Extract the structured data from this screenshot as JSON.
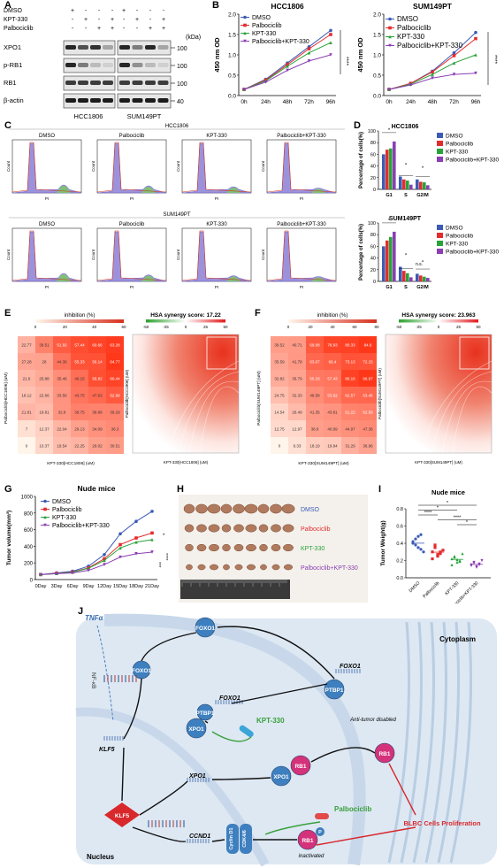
{
  "panels": {
    "A": "A",
    "B": "B",
    "C": "C",
    "D": "D",
    "E": "E",
    "F": "F",
    "G": "G",
    "H": "H",
    "I": "I",
    "J": "J"
  },
  "blot": {
    "conditions": [
      {
        "name": "DMSO",
        "marks": [
          "+",
          "-",
          "-",
          "-",
          "+",
          "-",
          "-",
          "-"
        ]
      },
      {
        "name": "KPT-330",
        "marks": [
          "-",
          "+",
          "-",
          "+",
          "-",
          "+",
          "-",
          "+"
        ]
      },
      {
        "name": "Palbociclib",
        "marks": [
          "-",
          "-",
          "+",
          "+",
          "-",
          "-",
          "+",
          "+"
        ]
      }
    ],
    "kda_label": "(kDa)",
    "rows": [
      {
        "name": "XPO1",
        "kda": "100"
      },
      {
        "name": "p-RB1",
        "kda": "100"
      },
      {
        "name": "RB1",
        "kda": "100"
      },
      {
        "name": "β-actin",
        "kda": "40"
      }
    ],
    "cell_lines": [
      "HCC1806",
      "SUM149PT"
    ]
  },
  "line_legend": [
    "DMSO",
    "Palbociclib",
    "KPT-330",
    "Palbociclib+KPT-330"
  ],
  "colors": {
    "DMSO": "#3b5bb5",
    "Palbociclib": "#e32d2d",
    "KPT": "#27a33a",
    "Combo": "#8a3fb3",
    "heat": "#e8321e"
  },
  "chart_data": [
    {
      "type": "line",
      "title": "HCC1806",
      "ylabel": "450 nm OD",
      "x": [
        "0h",
        "24h",
        "48h",
        "72h",
        "96h"
      ],
      "ylim": [
        0,
        2.0
      ],
      "yticks": [
        "0.0",
        "0.5",
        "1.0",
        "1.5",
        "2.0"
      ],
      "series": [
        {
          "name": "DMSO",
          "values": [
            0.15,
            0.4,
            0.8,
            1.2,
            1.6
          ]
        },
        {
          "name": "Palbociclib",
          "values": [
            0.15,
            0.38,
            0.76,
            1.15,
            1.5
          ]
        },
        {
          "name": "KPT-330",
          "values": [
            0.15,
            0.36,
            0.72,
            1.05,
            1.3
          ]
        },
        {
          "name": "Palbociclib+KPT-330",
          "values": [
            0.15,
            0.33,
            0.62,
            0.85,
            1.0
          ]
        }
      ],
      "sig": "****"
    },
    {
      "type": "line",
      "title": "SUM149PT",
      "ylabel": "450 nm OD",
      "x": [
        "0h",
        "24h",
        "48h",
        "72h",
        "96h"
      ],
      "ylim": [
        0,
        2.0
      ],
      "yticks": [
        "0.0",
        "0.5",
        "1.0",
        "1.5",
        "2.0"
      ],
      "series": [
        {
          "name": "DMSO",
          "values": [
            0.15,
            0.3,
            0.6,
            1.05,
            1.55
          ]
        },
        {
          "name": "Palbociclib",
          "values": [
            0.15,
            0.3,
            0.58,
            0.98,
            1.4
          ]
        },
        {
          "name": "KPT-330",
          "values": [
            0.15,
            0.28,
            0.52,
            0.8,
            1.0
          ]
        },
        {
          "name": "Palbociclib+KPT-330",
          "values": [
            0.15,
            0.26,
            0.43,
            0.52,
            0.55
          ]
        }
      ],
      "sig": "****"
    },
    {
      "type": "bar",
      "title": "HCC1806",
      "ylabel": "Percentage of cells(%)",
      "categories": [
        "G1",
        "S",
        "G2/M"
      ],
      "ylim": [
        0,
        100
      ],
      "yticks": [
        "0",
        "20",
        "40",
        "60",
        "80",
        "100"
      ],
      "series": [
        {
          "name": "DMSO",
          "values": [
            60,
            22,
            17
          ]
        },
        {
          "name": "Palbociclib",
          "values": [
            68,
            17,
            13
          ]
        },
        {
          "name": "KPT-330",
          "values": [
            70,
            15,
            12
          ]
        },
        {
          "name": "Palbociclib+KPT-330",
          "values": [
            82,
            8,
            7
          ]
        }
      ]
    },
    {
      "type": "bar",
      "title": "SUM149PT",
      "ylabel": "Percentage of cells(%)",
      "categories": [
        "G1",
        "S",
        "G2/M"
      ],
      "ylim": [
        0,
        100
      ],
      "yticks": [
        "0",
        "20",
        "40",
        "60",
        "80",
        "100"
      ],
      "series": [
        {
          "name": "DMSO",
          "values": [
            60,
            25,
            13
          ]
        },
        {
          "name": "Palbociclib",
          "values": [
            70,
            18,
            10
          ]
        },
        {
          "name": "KPT-330",
          "values": [
            76,
            14,
            8
          ]
        },
        {
          "name": "Palbociclib+KPT-330",
          "values": [
            85,
            7,
            6
          ]
        }
      ],
      "ns": "n.s."
    },
    {
      "type": "line",
      "title": "Nude mice",
      "ylabel": "Tumor volume(mm³)",
      "x": [
        "0Day",
        "3Day",
        "6Day",
        "9Day",
        "12Day",
        "15Day",
        "18Day",
        "21Day"
      ],
      "ylim": [
        0,
        1000
      ],
      "yticks": [
        "0",
        "200",
        "400",
        "600",
        "800",
        "1000"
      ],
      "series": [
        {
          "name": "DMSO",
          "values": [
            60,
            80,
            100,
            160,
            300,
            550,
            700,
            820
          ]
        },
        {
          "name": "Palbociclib",
          "values": [
            60,
            75,
            90,
            140,
            250,
            420,
            500,
            560
          ]
        },
        {
          "name": "KPT-330",
          "values": [
            60,
            72,
            88,
            135,
            230,
            380,
            450,
            480
          ]
        },
        {
          "name": "Palbociclib+KPT-330",
          "values": [
            60,
            70,
            80,
            110,
            180,
            270,
            310,
            330
          ]
        }
      ],
      "sig": [
        "*",
        "****",
        "***"
      ]
    },
    {
      "type": "scatter",
      "title": "Nude mice",
      "ylabel": "Tumor Weight(g)",
      "categories": [
        "DMSO",
        "Palbociclib",
        "KPT-330",
        "Palbociclib+KPT-330"
      ],
      "ylim": [
        0,
        0.8
      ],
      "yticks": [
        "0.0",
        "0.2",
        "0.4",
        "0.6",
        "0.8"
      ],
      "series": [
        {
          "name": "DMSO",
          "values": [
            0.4,
            0.45,
            0.35,
            0.5,
            0.3,
            0.42,
            0.38,
            0.48,
            0.33
          ]
        },
        {
          "name": "Palbociclib",
          "values": [
            0.3,
            0.35,
            0.25,
            0.28,
            0.32,
            0.22,
            0.38,
            0.27,
            0.3
          ]
        },
        {
          "name": "KPT-330",
          "values": [
            0.22,
            0.25,
            0.18,
            0.2,
            0.28,
            0.15,
            0.24,
            0.21,
            0.19
          ]
        },
        {
          "name": "Palbociclib+KPT-330",
          "values": [
            0.15,
            0.18,
            0.12,
            0.16,
            0.2,
            0.14,
            0.17,
            0.13,
            0.15
          ]
        }
      ],
      "sig": [
        "*",
        "*",
        "****",
        "****",
        "*",
        "*",
        "****"
      ]
    }
  ],
  "flow": {
    "rows": [
      {
        "title": "HCC1806",
        "panels": [
          "DMSO",
          "Palbociclib",
          "KPT-330",
          "Palbociclib+KPT-330"
        ]
      },
      {
        "title": "SUM149PT",
        "panels": [
          "DMSO",
          "Palbociclib",
          "KPT-330",
          "Palbociclib+KPT-330"
        ]
      }
    ],
    "ylabel": "Count",
    "xlabel": "PI"
  },
  "synergy": [
    {
      "inhibition_title": "inhibition (%)",
      "ticks": [
        "0",
        "20",
        "40",
        "60"
      ],
      "ylabel": "Palbociclib[HCC1806] (uM)",
      "xlabel": "KPT-330[HCC1806] (uM)",
      "rows": [
        [
          "22.77",
          "39.51",
          "51.92",
          "57.44",
          "60.66",
          "63.28"
        ],
        [
          "27.28",
          "28",
          "44.36",
          "55.33",
          "56.14",
          "64.77"
        ],
        [
          "21.6",
          "25.88",
          "35.46",
          "46.15",
          "56.82",
          "60.44"
        ],
        [
          "18.12",
          "22.66",
          "33.56",
          "43.75",
          "47.63",
          "52.99"
        ],
        [
          "21.81",
          "19.81",
          "32.8",
          "39.75",
          "38.89",
          "39.29"
        ],
        [
          "7",
          "12.37",
          "22.04",
          "29.13",
          "34.09",
          "36.3"
        ],
        [
          "0",
          "10.37",
          "19.54",
          "22.25",
          "29.02",
          "30.51"
        ]
      ],
      "hsa_title": "HSA synergy score: 17.22",
      "hsa_ticks": [
        "-50",
        "-25",
        "0",
        "25",
        "50"
      ]
    },
    {
      "inhibition_title": "inhibition (%)",
      "ticks": [
        "0",
        "20",
        "40",
        "60",
        "80"
      ],
      "ylabel": "Palbociclib[SUM149PT] (uM)",
      "xlabel": "KPT-330[SUM149PT] (uM)",
      "rows": [
        [
          "39.52",
          "40.71",
          "69.08",
          "78.93",
          "80.33",
          "84.6"
        ],
        [
          "35.59",
          "41.78",
          "63.67",
          "66.4",
          "73.13",
          "72.15"
        ],
        [
          "32.82",
          "36.79",
          "55.33",
          "57.43",
          "80.16",
          "86.97"
        ],
        [
          "24.75",
          "32.33",
          "46.58",
          "53.62",
          "62.57",
          "63.46"
        ],
        [
          "14.54",
          "26.49",
          "41.35",
          "43.81",
          "51.22",
          "52.59"
        ],
        [
          "12.75",
          "12.97",
          "38.9",
          "40.99",
          "44.97",
          "47.36"
        ],
        [
          "0",
          "9.33",
          "18.19",
          "19.84",
          "31.29",
          "36.96"
        ]
      ],
      "hsa_title": "HSA synergy score: 23.963",
      "hsa_ticks": [
        "-50",
        "-25",
        "0",
        "25",
        "50"
      ]
    }
  ],
  "H_labels": [
    "DMSO",
    "Palbociclib",
    "KPT-330",
    "Palbociclib+KPT-330"
  ],
  "pathway": {
    "TNFa": "TNFα",
    "NFkB": "NF-κB",
    "FOXO1": "FOXO1",
    "KLF5": "KLF5",
    "XPO1": "XPO1",
    "CCND1": "CCND1",
    "PTBP1": "PTBP1",
    "RB1": "RB1",
    "KPT": "KPT-330",
    "Palbo": "Palbociclib",
    "Cyclin": "Cyclin D1",
    "CDK": "CDK4/6",
    "P": "P",
    "cytoplasm": "Cytoplasm",
    "nucleus": "Nucleus",
    "antitumor": "Anti-tumor disabled",
    "inactivated": "inactivated",
    "outcome": "BLBC Cells Proliferation"
  }
}
